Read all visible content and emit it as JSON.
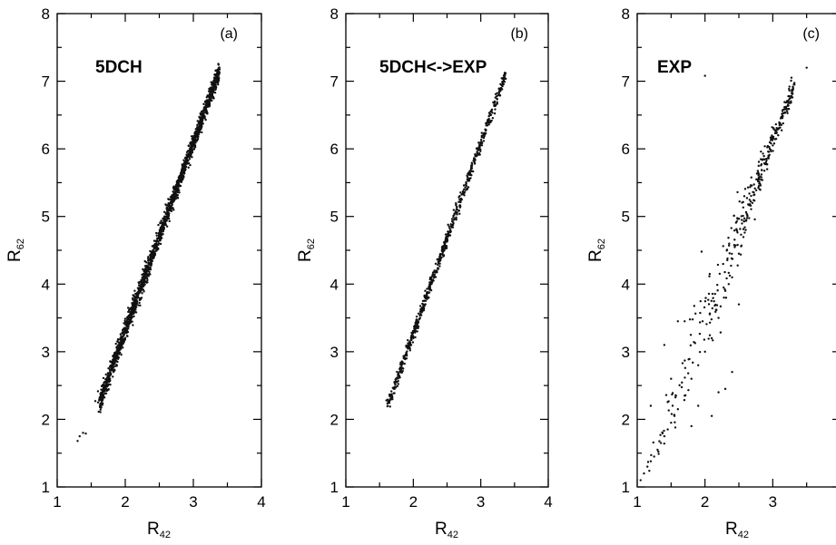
{
  "chart_data": [
    {
      "type": "scatter",
      "panel_tag": "(a)",
      "title": "5DCH",
      "xlabel": {
        "main": "R",
        "sub": "42"
      },
      "ylabel": {
        "main": "R",
        "sub": "62"
      },
      "xlim": [
        1,
        4
      ],
      "ylim": [
        1,
        8
      ],
      "xticks": [
        "1",
        "2",
        "3",
        "4"
      ],
      "yticks": [
        "1",
        "2",
        "3",
        "4",
        "5",
        "6",
        "7",
        "8"
      ],
      "series": [
        {
          "trend": {
            "x_start": 1.62,
            "x_end": 3.38,
            "slope": 2.78,
            "intercept": -2.25
          },
          "points": [
            [
              1.3,
              1.68
            ],
            [
              1.33,
              1.75
            ],
            [
              1.38,
              1.8
            ],
            [
              1.42,
              1.79
            ],
            [
              1.56,
              2.27
            ],
            [
              1.6,
              2.25
            ],
            [
              1.64,
              2.19
            ],
            [
              1.66,
              2.3
            ],
            [
              1.7,
              2.42
            ],
            [
              1.72,
              2.55
            ],
            [
              1.75,
              2.62
            ],
            [
              1.78,
              2.72
            ],
            [
              1.8,
              2.75
            ],
            [
              1.84,
              2.9
            ],
            [
              1.86,
              2.96
            ],
            [
              1.9,
              3.05
            ],
            [
              1.95,
              3.2
            ],
            [
              2.0,
              3.3
            ],
            [
              2.05,
              3.48
            ],
            [
              2.1,
              3.6
            ],
            [
              2.15,
              3.75
            ],
            [
              2.2,
              3.88
            ],
            [
              2.25,
              4.02
            ],
            [
              2.3,
              4.15
            ],
            [
              2.35,
              4.3
            ],
            [
              2.4,
              4.45
            ],
            [
              2.45,
              4.58
            ],
            [
              2.5,
              4.72
            ],
            [
              2.55,
              4.85
            ],
            [
              2.6,
              5.0
            ],
            [
              2.65,
              5.12
            ],
            [
              2.7,
              5.26
            ],
            [
              2.75,
              5.4
            ],
            [
              2.8,
              5.54
            ],
            [
              2.85,
              5.68
            ],
            [
              2.9,
              5.8
            ],
            [
              2.95,
              5.95
            ],
            [
              3.0,
              6.08
            ],
            [
              3.05,
              6.22
            ],
            [
              3.1,
              6.36
            ],
            [
              3.15,
              6.5
            ],
            [
              3.2,
              6.64
            ],
            [
              3.25,
              6.78
            ],
            [
              3.3,
              6.92
            ],
            [
              3.35,
              7.05
            ],
            [
              3.38,
              7.13
            ]
          ],
          "density": 1700,
          "spread": 0.07
        }
      ]
    },
    {
      "type": "scatter",
      "panel_tag": "(b)",
      "title": "5DCH<->EXP",
      "xlabel": {
        "main": "R",
        "sub": "42"
      },
      "ylabel": {
        "main": "R",
        "sub": "62"
      },
      "xlim": [
        1,
        4
      ],
      "ylim": [
        1,
        8
      ],
      "xticks": [
        "1",
        "2",
        "3",
        "4"
      ],
      "yticks": [
        "1",
        "2",
        "3",
        "4",
        "5",
        "6",
        "7",
        "8"
      ],
      "series": [
        {
          "trend": {
            "x_start": 1.62,
            "x_end": 3.36,
            "slope": 2.81,
            "intercept": -2.35
          },
          "points": [
            [
              1.6,
              2.28
            ],
            [
              1.63,
              2.25
            ],
            [
              1.68,
              2.3
            ],
            [
              1.72,
              2.55
            ],
            [
              1.75,
              2.6
            ],
            [
              1.8,
              2.62
            ],
            [
              1.85,
              2.75
            ],
            [
              1.9,
              2.9
            ],
            [
              1.95,
              3.05
            ],
            [
              2.0,
              3.2
            ],
            [
              2.05,
              3.35
            ],
            [
              2.1,
              3.5
            ],
            [
              2.15,
              3.65
            ],
            [
              2.2,
              3.8
            ],
            [
              2.25,
              3.92
            ],
            [
              2.3,
              4.05
            ],
            [
              2.35,
              4.2
            ],
            [
              2.4,
              4.35
            ],
            [
              2.45,
              4.5
            ],
            [
              2.5,
              4.65
            ],
            [
              2.55,
              4.8
            ],
            [
              2.6,
              4.95
            ],
            [
              2.65,
              5.1
            ],
            [
              2.7,
              5.25
            ],
            [
              2.75,
              5.4
            ],
            [
              2.8,
              5.55
            ],
            [
              2.9,
              5.85
            ],
            [
              3.0,
              6.1
            ],
            [
              3.1,
              6.4
            ],
            [
              3.2,
              6.65
            ],
            [
              3.3,
              6.9
            ],
            [
              3.35,
              7.05
            ]
          ],
          "density": 620,
          "spread": 0.05
        }
      ]
    },
    {
      "type": "scatter",
      "panel_tag": "(c)",
      "title": "EXP",
      "xlabel": {
        "main": "R",
        "sub": "42"
      },
      "ylabel": {
        "main": "R",
        "sub": "62"
      },
      "xlim": [
        1,
        4
      ],
      "ylim": [
        1,
        8
      ],
      "xticks": [
        "1",
        "2",
        "3",
        "4"
      ],
      "yticks": [
        "1",
        "2",
        "3",
        "4",
        "5",
        "6",
        "7",
        "8"
      ],
      "series": [
        {
          "trend": {
            "x_start": 1.05,
            "x_end": 3.32,
            "slope": 2.6,
            "intercept": -1.7
          },
          "points": [
            [
              1.05,
              1.1
            ],
            [
              1.1,
              1.2
            ],
            [
              1.15,
              1.3
            ],
            [
              1.2,
              1.38
            ],
            [
              1.25,
              1.45
            ],
            [
              1.3,
              1.55
            ],
            [
              1.35,
              1.65
            ],
            [
              1.4,
              1.75
            ],
            [
              1.45,
              1.85
            ],
            [
              1.5,
              1.95
            ],
            [
              1.55,
              2.05
            ],
            [
              1.6,
              2.15
            ],
            [
              1.7,
              2.35
            ],
            [
              1.8,
              2.6
            ],
            [
              1.9,
              2.8
            ],
            [
              2.0,
              3.0
            ],
            [
              2.1,
              3.2
            ],
            [
              2.2,
              3.5
            ],
            [
              2.28,
              3.8
            ],
            [
              2.3,
              3.9
            ],
            [
              2.35,
              4.0
            ],
            [
              2.4,
              4.1
            ],
            [
              2.5,
              4.45
            ],
            [
              2.6,
              4.8
            ],
            [
              2.7,
              5.2
            ],
            [
              2.8,
              5.55
            ],
            [
              2.9,
              5.8
            ],
            [
              3.0,
              6.05
            ],
            [
              3.1,
              6.35
            ],
            [
              3.2,
              6.6
            ],
            [
              3.3,
              6.9
            ],
            [
              3.32,
              6.95
            ],
            [
              1.2,
              2.2
            ],
            [
              1.4,
              3.1
            ],
            [
              1.6,
              3.45
            ],
            [
              1.7,
              3.45
            ],
            [
              1.95,
              4.48
            ],
            [
              2.0,
              7.08
            ],
            [
              2.3,
              2.45
            ],
            [
              2.58,
              5.3
            ],
            [
              3.5,
              7.2
            ],
            [
              2.1,
              2.05
            ],
            [
              2.2,
              2.4
            ],
            [
              2.5,
              3.7
            ],
            [
              1.5,
              2.6
            ],
            [
              1.8,
              1.9
            ],
            [
              1.9,
              2.2
            ],
            [
              2.4,
              2.7
            ]
          ],
          "density": 340,
          "spread": 0.28
        }
      ]
    }
  ]
}
